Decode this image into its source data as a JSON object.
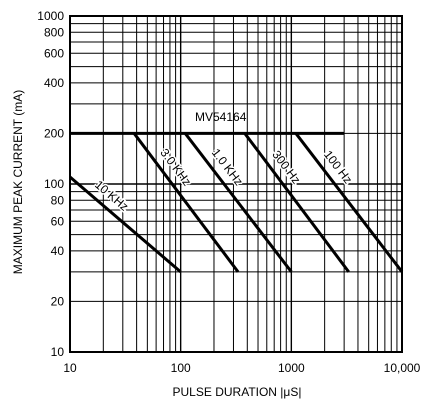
{
  "chart_data": {
    "type": "line",
    "title": "",
    "xlabel": "PULSE DURATION |μS|",
    "ylabel": "MAXIMUM PEAK CURRENT (mA)",
    "x_scale": "log",
    "y_scale": "log",
    "xlim": [
      10,
      10000
    ],
    "ylim": [
      10,
      1000
    ],
    "grid": true,
    "x_tick_labels": [
      "10",
      "100",
      "1000",
      "10,000"
    ],
    "x_ticks": [
      10,
      100,
      1000,
      10000
    ],
    "y_tick_labels": [
      "10",
      "20",
      "40",
      "60",
      "80",
      "100",
      "200",
      "400",
      "600",
      "800",
      "1000"
    ],
    "y_ticks": [
      10,
      20,
      40,
      60,
      80,
      100,
      200,
      400,
      600,
      800,
      1000
    ],
    "annotation": "MV54164",
    "envelope": {
      "x": [
        10,
        3000
      ],
      "y": [
        200,
        200
      ]
    },
    "series": [
      {
        "name": "10 KHz",
        "x": [
          10,
          100
        ],
        "y": [
          110,
          30
        ]
      },
      {
        "name": "3.0 KHz",
        "x": [
          38,
          330
        ],
        "y": [
          200,
          30
        ]
      },
      {
        "name": "1.0 KHz",
        "x": [
          110,
          1000
        ],
        "y": [
          200,
          30
        ]
      },
      {
        "name": "300 Hz",
        "x": [
          380,
          3300
        ],
        "y": [
          200,
          30
        ]
      },
      {
        "name": "100 Hz",
        "x": [
          1100,
          10000
        ],
        "y": [
          200,
          30
        ]
      }
    ]
  }
}
